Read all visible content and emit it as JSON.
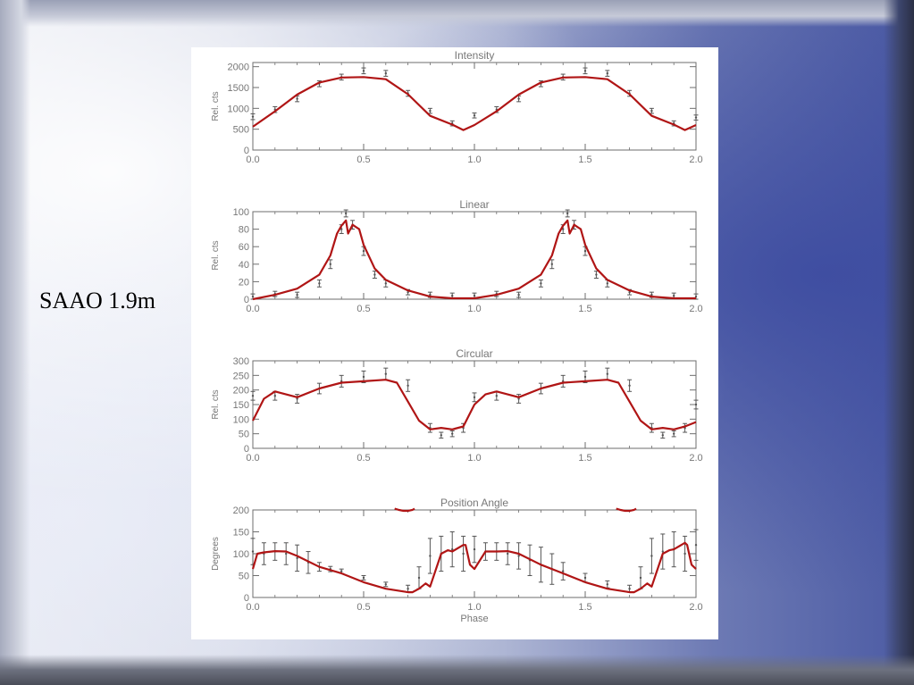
{
  "slide": {
    "label": "SAAO 1.9m"
  },
  "colors": {
    "model": "#b01515",
    "data": "#555555",
    "frame": "#6e6e6e"
  },
  "chart_data": [
    {
      "type": "line",
      "title": "Intensity",
      "xlabel": "",
      "ylabel": "Rel. cts",
      "xlim": [
        0,
        2
      ],
      "ylim": [
        0,
        2100
      ],
      "xticks": [
        "0.0",
        "0.5",
        "1.0",
        "1.5",
        "2.0"
      ],
      "yticks": [
        "0",
        "500",
        "1000",
        "1500",
        "2000"
      ],
      "series": [
        {
          "kind": "data",
          "x": [
            0,
            0.1,
            0.2,
            0.3,
            0.4,
            0.5,
            0.6,
            0.7,
            0.8,
            0.9,
            1.0,
            1.1,
            1.2,
            1.3,
            1.4,
            1.5,
            1.6,
            1.7,
            1.8,
            1.9,
            2.0
          ],
          "y": [
            800,
            970,
            1230,
            1590,
            1750,
            1900,
            1840,
            1360,
            940,
            640,
            830,
            970,
            1230,
            1590,
            1750,
            1900,
            1840,
            1360,
            940,
            640,
            780
          ],
          "err": [
            70,
            70,
            70,
            70,
            70,
            70,
            70,
            70,
            60,
            60,
            60,
            70,
            70,
            70,
            70,
            70,
            70,
            70,
            60,
            60,
            60
          ]
        },
        {
          "kind": "model",
          "x": [
            0,
            0.1,
            0.2,
            0.3,
            0.4,
            0.5,
            0.6,
            0.7,
            0.8,
            0.9,
            0.95,
            1.0,
            1.1,
            1.2,
            1.3,
            1.4,
            1.5,
            1.6,
            1.7,
            1.8,
            1.9,
            1.95,
            2.0
          ],
          "y": [
            560,
            930,
            1330,
            1620,
            1740,
            1750,
            1700,
            1340,
            820,
            610,
            480,
            600,
            930,
            1330,
            1620,
            1740,
            1750,
            1700,
            1340,
            820,
            610,
            480,
            600
          ]
        }
      ]
    },
    {
      "type": "line",
      "title": "Linear",
      "xlabel": "",
      "ylabel": "Rel. cts",
      "xlim": [
        0,
        2
      ],
      "ylim": [
        0,
        100
      ],
      "xticks": [
        "0.0",
        "0.5",
        "1.0",
        "1.5",
        "2.0"
      ],
      "yticks": [
        "0",
        "20",
        "40",
        "60",
        "80",
        "100"
      ],
      "series": [
        {
          "kind": "data",
          "x": [
            0,
            0.1,
            0.2,
            0.3,
            0.35,
            0.4,
            0.42,
            0.45,
            0.5,
            0.55,
            0.6,
            0.7,
            0.8,
            0.9,
            1.0,
            1.1,
            1.2,
            1.3,
            1.35,
            1.4,
            1.42,
            1.45,
            1.5,
            1.55,
            1.6,
            1.7,
            1.8,
            1.9,
            2.0
          ],
          "y": [
            3,
            6,
            5,
            18,
            40,
            80,
            98,
            85,
            55,
            28,
            18,
            8,
            5,
            4,
            4,
            6,
            5,
            18,
            40,
            80,
            98,
            85,
            55,
            28,
            18,
            8,
            5,
            4,
            3
          ],
          "err": [
            3,
            3,
            3,
            4,
            5,
            5,
            4,
            5,
            5,
            4,
            4,
            3,
            3,
            3,
            3,
            3,
            3,
            4,
            5,
            5,
            4,
            5,
            5,
            4,
            4,
            3,
            3,
            3,
            3
          ]
        },
        {
          "kind": "model",
          "x": [
            0,
            0.1,
            0.2,
            0.3,
            0.35,
            0.38,
            0.4,
            0.42,
            0.43,
            0.45,
            0.48,
            0.5,
            0.55,
            0.6,
            0.7,
            0.8,
            0.9,
            1.0,
            1.1,
            1.2,
            1.3,
            1.35,
            1.38,
            1.4,
            1.42,
            1.43,
            1.45,
            1.48,
            1.5,
            1.55,
            1.6,
            1.7,
            1.8,
            1.9,
            2.0
          ],
          "y": [
            0,
            5,
            12,
            28,
            50,
            75,
            84,
            90,
            75,
            85,
            80,
            62,
            35,
            22,
            10,
            3,
            1,
            1,
            5,
            12,
            28,
            50,
            75,
            84,
            90,
            75,
            85,
            80,
            62,
            35,
            22,
            10,
            3,
            1,
            1
          ]
        }
      ]
    },
    {
      "type": "line",
      "title": "Circular",
      "xlabel": "",
      "ylabel": "Rel. cts",
      "xlim": [
        0,
        2
      ],
      "ylim": [
        0,
        300
      ],
      "xticks": [
        "0.0",
        "0.5",
        "1.0",
        "1.5",
        "2.0"
      ],
      "yticks": [
        "0",
        "50",
        "100",
        "150",
        "200",
        "250",
        "300"
      ],
      "series": [
        {
          "kind": "data",
          "x": [
            0,
            0.1,
            0.2,
            0.3,
            0.4,
            0.5,
            0.6,
            0.7,
            0.8,
            0.85,
            0.9,
            0.95,
            1.0,
            1.1,
            1.2,
            1.3,
            1.4,
            1.5,
            1.6,
            1.7,
            1.8,
            1.85,
            1.9,
            1.95,
            2.0
          ],
          "y": [
            180,
            180,
            170,
            205,
            230,
            245,
            255,
            215,
            70,
            45,
            50,
            70,
            175,
            180,
            170,
            205,
            230,
            245,
            255,
            215,
            70,
            45,
            50,
            70,
            150
          ],
          "err": [
            15,
            15,
            15,
            18,
            20,
            20,
            20,
            20,
            15,
            10,
            10,
            15,
            15,
            15,
            15,
            18,
            20,
            20,
            20,
            20,
            15,
            10,
            10,
            15,
            15
          ]
        },
        {
          "kind": "model",
          "x": [
            0,
            0.05,
            0.1,
            0.15,
            0.2,
            0.3,
            0.4,
            0.5,
            0.6,
            0.65,
            0.7,
            0.75,
            0.8,
            0.85,
            0.9,
            0.95,
            1.0,
            1.05,
            1.1,
            1.15,
            1.2,
            1.3,
            1.4,
            1.5,
            1.6,
            1.65,
            1.7,
            1.75,
            1.8,
            1.85,
            1.9,
            1.95,
            2.0
          ],
          "y": [
            95,
            170,
            195,
            185,
            175,
            205,
            225,
            230,
            235,
            225,
            160,
            95,
            65,
            70,
            65,
            75,
            150,
            185,
            195,
            185,
            175,
            205,
            225,
            230,
            235,
            225,
            160,
            95,
            65,
            70,
            65,
            75,
            90
          ]
        }
      ]
    },
    {
      "type": "line",
      "title": "Position Angle",
      "xlabel": "Phase",
      "ylabel": "Degrees",
      "xlim": [
        0,
        2
      ],
      "ylim": [
        0,
        200
      ],
      "xticks": [
        "0.0",
        "0.5",
        "1.0",
        "1.5",
        "2.0"
      ],
      "yticks": [
        "0",
        "50",
        "100",
        "150",
        "200"
      ],
      "series": [
        {
          "kind": "data",
          "x": [
            0,
            0.05,
            0.1,
            0.15,
            0.2,
            0.25,
            0.3,
            0.35,
            0.4,
            0.5,
            0.6,
            0.7,
            0.75,
            0.8,
            0.85,
            0.9,
            0.95,
            1.0,
            1.05,
            1.1,
            1.15,
            1.2,
            1.25,
            1.3,
            1.35,
            1.4,
            1.5,
            1.6,
            1.7,
            1.75,
            1.8,
            1.85,
            1.9,
            1.95,
            2.0
          ],
          "y": [
            105,
            100,
            105,
            100,
            90,
            80,
            70,
            65,
            60,
            45,
            30,
            20,
            45,
            95,
            100,
            110,
            100,
            110,
            105,
            105,
            100,
            95,
            85,
            75,
            65,
            60,
            45,
            30,
            20,
            45,
            95,
            105,
            110,
            100,
            120
          ],
          "err": [
            30,
            25,
            20,
            25,
            30,
            25,
            10,
            6,
            5,
            5,
            5,
            8,
            25,
            40,
            40,
            40,
            40,
            30,
            20,
            20,
            25,
            30,
            35,
            40,
            35,
            20,
            10,
            8,
            8,
            25,
            40,
            40,
            40,
            40,
            35
          ]
        },
        {
          "kind": "model",
          "x": [
            0,
            0.02,
            0.05,
            0.1,
            0.15,
            0.2,
            0.3,
            0.4,
            0.5,
            0.6,
            0.7,
            0.72,
            0.75,
            0.78,
            0.8,
            0.85,
            0.88,
            0.9,
            0.95,
            0.96,
            0.98,
            1.0,
            1.05,
            1.1,
            1.15,
            1.2,
            1.3,
            1.4,
            1.5,
            1.6,
            1.7,
            1.72,
            1.75,
            1.78,
            1.8,
            1.85,
            1.88,
            1.9,
            1.95,
            1.96,
            1.98,
            2.0
          ],
          "y": [
            65,
            100,
            103,
            106,
            105,
            95,
            70,
            55,
            35,
            20,
            12,
            12,
            20,
            32,
            25,
            100,
            108,
            105,
            120,
            120,
            75,
            65,
            105,
            105,
            106,
            100,
            75,
            55,
            35,
            20,
            12,
            12,
            20,
            32,
            25,
            100,
            108,
            110,
            125,
            120,
            75,
            65
          ]
        },
        {
          "kind": "model-wrap",
          "segments": [
            {
              "x": [
                0.64,
                0.66,
                0.68,
                0.7,
                0.72,
                0.73
              ],
              "y": [
                203,
                200,
                198,
                198,
                200,
                203
              ]
            },
            {
              "x": [
                1.64,
                1.66,
                1.68,
                1.7,
                1.72,
                1.73
              ],
              "y": [
                203,
                200,
                198,
                198,
                200,
                203
              ]
            }
          ]
        }
      ]
    }
  ]
}
